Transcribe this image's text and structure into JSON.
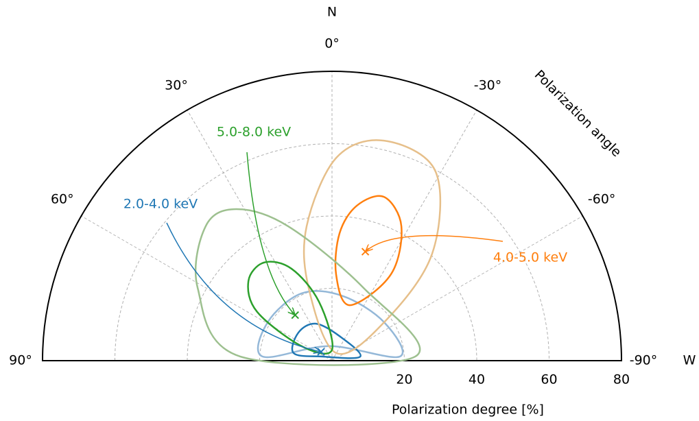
{
  "chart_data": {
    "type": "polar",
    "north_label": "N",
    "west_label": "W",
    "angle_axis_label": "Polarization angle",
    "radial_axis_label": "Polarization degree [%]",
    "rlim": [
      0,
      80
    ],
    "rticks": [
      20,
      40,
      60,
      80
    ],
    "thetalim": [
      -90,
      90
    ],
    "thetaticks": [
      {
        "value": 0,
        "label": "0°"
      },
      {
        "value": 30,
        "label": "30°"
      },
      {
        "value": 60,
        "label": "60°"
      },
      {
        "value": 90,
        "label": "90°"
      },
      {
        "value": -30,
        "label": "-30°"
      },
      {
        "value": -60,
        "label": "-60°"
      },
      {
        "value": -90,
        "label": "-90°"
      }
    ],
    "grid": true,
    "series": [
      {
        "name": "2.0-4.0 keV",
        "color": "#1f77b4",
        "best_degree": 3.9,
        "best_angle": 51,
        "contours": [
          {
            "color": "#1f77b4",
            "degree": [
              10.8,
              12.1,
              11.2,
              7.1,
              7.9,
              2.9
            ],
            "angle": [
              78.9,
              50.1,
              24.0,
              -17.0,
              -81.7,
              66.8
            ]
          },
          {
            "color": "#94b8d8",
            "degree": [
              19.2,
              20.7,
              20.4,
              18.1,
              17.9,
              18.8,
              4.1
            ],
            "angle": [
              86.6,
              59.2,
              24.2,
              -9.7,
              -53.6,
              -86.5,
              10.8
            ]
          }
        ]
      },
      {
        "name": "4.0-5.0 keV",
        "color": "#ff7f0e",
        "best_degree": 31.5,
        "best_angle": -17,
        "contours": [
          {
            "color": "#ff7f0e",
            "degree": [
              47.5,
              41.8,
              28.9,
              16.1,
              23.9,
              35.3,
              43.4
            ],
            "angle": [
              -17.6,
              -27.3,
              -34.3,
              -17.8,
              -2.7,
              -3.4,
              -9.1
            ]
          },
          {
            "color": "#e6bf8a",
            "degree": [
              2.4,
              21.1,
              37.8,
              56.1,
              62.5,
              59.6,
              40.5,
              17.9
            ],
            "angle": [
              -28.6,
              17.8,
              10.7,
              -1.2,
              -13.3,
              -28.7,
              -43.1,
              -53.6
            ]
          }
        ]
      },
      {
        "name": "5.0-8.0 keV",
        "color": "#2ca02c",
        "best_degree": 16.2,
        "best_angle": 39,
        "contours": [
          {
            "color": "#2ca02c",
            "degree": [
              31.9,
              33.0,
              27.8,
              16.7,
              3.0,
              9.2,
              24.7
            ],
            "angle": [
              46.4,
              34.7,
              23.8,
              12.5,
              0,
              64.5,
              56.9
            ]
          },
          {
            "color": "#9dc08f",
            "degree": [
              25.4,
              42.2,
              51.0,
              49.5,
              39.1,
              21.9,
              23.0
            ],
            "angle": [
              87.4,
              61.6,
              43.2,
              32.2,
              18.1,
              -23.5,
              -87.2
            ]
          }
        ]
      }
    ]
  }
}
